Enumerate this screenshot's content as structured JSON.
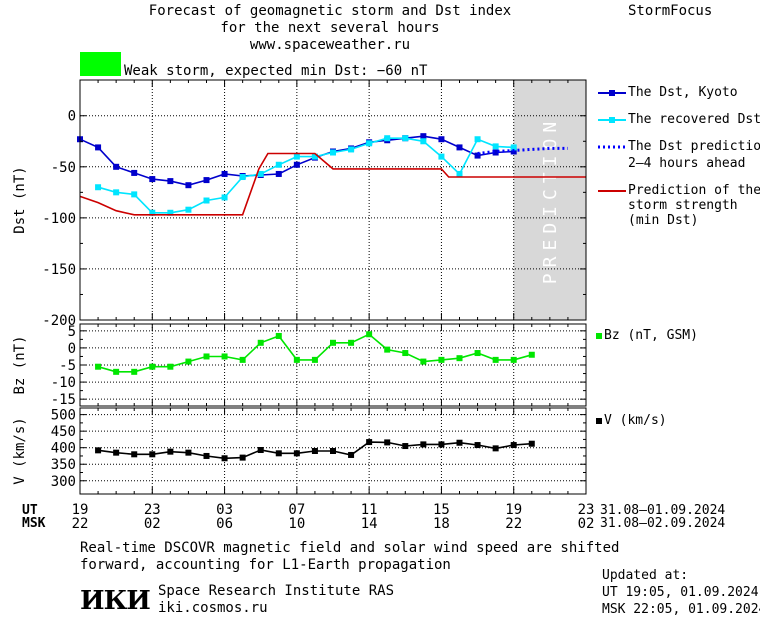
{
  "header": {
    "title_line1": "Forecast of geomagnetic storm and Dst index",
    "title_line2": "for the next several hours",
    "site": "www.spaceweather.ru",
    "brand": "StormFocus",
    "storm_label": "Weak storm, expected min Dst: −60 nT",
    "storm_color": "#00ff00"
  },
  "chart_data": [
    {
      "type": "line",
      "ylabel": "Dst (nT)",
      "ylim": [
        -200,
        35
      ],
      "yticks": [
        0,
        -50,
        -100,
        -150,
        -200
      ],
      "xlim": [
        0,
        28
      ],
      "prediction_band": [
        24,
        28
      ],
      "prediction_label": "PREDICTION",
      "series": [
        {
          "name": "The Dst, Kyoto",
          "color": "#0000cc",
          "marker": "square",
          "x": [
            0,
            1,
            2,
            3,
            4,
            5,
            6,
            7,
            8,
            9,
            10,
            11,
            12,
            13,
            14,
            15,
            16,
            17,
            18,
            19,
            20,
            21,
            22,
            23,
            24
          ],
          "values": [
            -23,
            -31,
            -50,
            -56,
            -62,
            -64,
            -68,
            -63,
            -57,
            -59,
            -58,
            -57,
            -48,
            -41,
            -35,
            -32,
            -26,
            -24,
            -22,
            -20,
            -23,
            -31,
            -39,
            -36,
            -35
          ]
        },
        {
          "name": "The recovered Dst",
          "color": "#00e5ff",
          "marker": "square",
          "x": [
            1,
            2,
            3,
            4,
            5,
            6,
            7,
            8,
            9,
            10,
            11,
            12,
            13,
            14,
            15,
            16,
            17,
            18,
            19,
            20,
            21,
            22,
            23,
            24
          ],
          "values": [
            -70,
            -75,
            -77,
            -95,
            -95,
            -92,
            -83,
            -80,
            -60,
            -57,
            -48,
            -40,
            -40,
            -36,
            -33,
            -27,
            -22,
            -22,
            -25,
            -40,
            -57,
            -23,
            -30,
            -31
          ]
        },
        {
          "name": "The Dst prediction 2–4 hours ahead",
          "color": "#0000ff",
          "style": "dotted",
          "x": [
            22,
            23,
            24,
            25,
            26,
            27
          ],
          "values": [
            -37,
            -35,
            -34,
            -33,
            -32,
            -32
          ]
        },
        {
          "name": "Prediction of the storm strength (min Dst)",
          "color": "#cc0000",
          "style": "line",
          "x": [
            0,
            1,
            2,
            3,
            4,
            5,
            6,
            7,
            8,
            9,
            9.9,
            10.4,
            11,
            12,
            13,
            14,
            15,
            16,
            17,
            18,
            19,
            20,
            20.4,
            21,
            22,
            23,
            24,
            25,
            26,
            27,
            28
          ],
          "values": [
            -79,
            -85,
            -93,
            -97,
            -97,
            -97,
            -97,
            -97,
            -97,
            -97,
            -52,
            -37,
            -37,
            -37,
            -37,
            -52,
            -52,
            -52,
            -52,
            -52,
            -52,
            -52,
            -60,
            -60,
            -60,
            -60,
            -60,
            -60,
            -60,
            -60,
            -60
          ]
        }
      ]
    },
    {
      "type": "line",
      "ylabel": "Bz (nT)",
      "ylim": [
        -17,
        7
      ],
      "yticks": [
        5,
        0,
        -5,
        -10,
        -15
      ],
      "xlim": [
        0,
        28
      ],
      "series": [
        {
          "name": "Bz (nT, GSM)",
          "color": "#00e600",
          "marker": "square",
          "x": [
            1,
            2,
            3,
            4,
            5,
            6,
            7,
            8,
            9,
            10,
            11,
            12,
            13,
            14,
            15,
            16,
            17,
            18,
            19,
            20,
            21,
            22,
            23,
            24,
            25
          ],
          "values": [
            -5.5,
            -7,
            -7,
            -5.5,
            -5.5,
            -4,
            -2.5,
            -2.5,
            -3.5,
            1.5,
            3.5,
            -3.5,
            -3.5,
            1.5,
            1.5,
            4,
            -0.5,
            -1.5,
            -4,
            -3.5,
            -3,
            -1.5,
            -3.5,
            -3.5,
            -2
          ]
        }
      ]
    },
    {
      "type": "line",
      "ylabel": "V (km/s)",
      "ylim": [
        260,
        520
      ],
      "yticks": [
        500,
        450,
        400,
        350,
        300
      ],
      "xlim": [
        0,
        28
      ],
      "series": [
        {
          "name": "V (km/s)",
          "color": "#000000",
          "marker": "square",
          "x": [
            1,
            2,
            3,
            4,
            5,
            6,
            7,
            8,
            9,
            10,
            11,
            12,
            13,
            14,
            15,
            16,
            17,
            18,
            19,
            20,
            21,
            22,
            23,
            24,
            25
          ],
          "values": [
            392,
            385,
            380,
            380,
            388,
            385,
            375,
            368,
            370,
            393,
            383,
            383,
            390,
            390,
            378,
            417,
            416,
            405,
            410,
            410,
            415,
            408,
            398,
            408,
            412
          ]
        }
      ]
    }
  ],
  "x_axis": {
    "ut_label": "UT",
    "msk_label": "MSK",
    "ticks_x": [
      0,
      4,
      8,
      12,
      16,
      20,
      24,
      28
    ],
    "ut_ticks": [
      "19",
      "23",
      "03",
      "07",
      "11",
      "15",
      "19",
      "23"
    ],
    "msk_ticks": [
      "22",
      "02",
      "06",
      "10",
      "14",
      "18",
      "22",
      "02"
    ],
    "ut_range": "31.08–01.09.2024",
    "msk_range": "31.08–02.09.2024"
  },
  "legend": {
    "dst_kyoto": "The Dst, Kyoto",
    "recovered": "The recovered Dst",
    "prediction_1": "The Dst prediction",
    "prediction_2": "2–4 hours ahead",
    "strength_1": "Prediction of the",
    "strength_2": "storm strength",
    "strength_3": "(min Dst)",
    "bz": "Bz (nT, GSM)",
    "v": "V (km/s)"
  },
  "footer": {
    "note_line1": "Real-time DSCOVR magnetic field and solar wind speed are shifted",
    "note_line2": "forward, accounting for L1-Earth propagation",
    "logo": "ИКИ",
    "institute": "Space Research Institute RAS",
    "url": "iki.cosmos.ru",
    "updated_label": "Updated at:",
    "updated_ut": "UT  19:05, 01.09.2024",
    "updated_msk": "MSK 22:05, 01.09.2024"
  }
}
